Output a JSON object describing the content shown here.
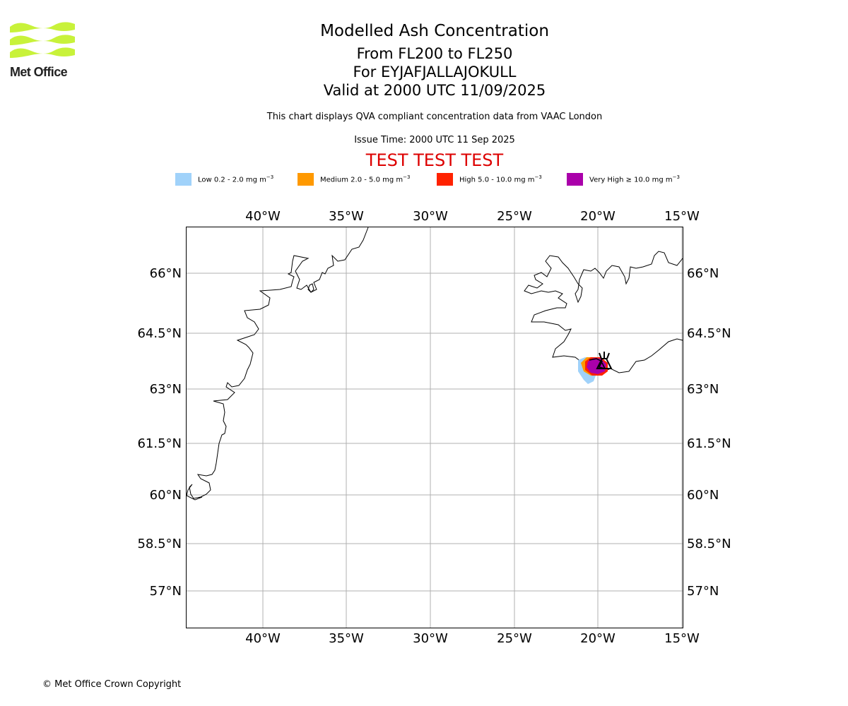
{
  "branding": {
    "logo_text": "Met Office",
    "logo_color": "#c8f23a"
  },
  "header": {
    "title": "Modelled Ash Concentration",
    "levels": "From FL200 to FL250",
    "volcano": "For EYJAFJALLAJOKULL",
    "valid": "Valid at 2000 UTC 11/09/2025",
    "description": "This chart displays QVA compliant concentration data from VAAC London",
    "issue_time": "Issue Time: 2000 UTC 11 Sep 2025",
    "test_banner": "TEST TEST TEST",
    "test_color": "#dd0000"
  },
  "legend": [
    {
      "label": "Low 0.2 - 2.0 mg m",
      "exp": "−3",
      "color": "#a0d2fa"
    },
    {
      "label": "Medium 2.0 - 5.0 mg m",
      "exp": "−3",
      "color": "#ff9900"
    },
    {
      "label": "High 5.0 - 10.0 mg m",
      "exp": "−3",
      "color": "#ff2200"
    },
    {
      "label": "Very High  ≥  10.0 mg m",
      "exp": "−3",
      "color": "#aa00aa"
    }
  ],
  "map": {
    "lon_ticks": [
      "40°W",
      "35°W",
      "30°W",
      "25°W",
      "20°W",
      "15°W"
    ],
    "lat_ticks": [
      "66°N",
      "64.5°N",
      "63°N",
      "61.5°N",
      "60°N",
      "58.5°N",
      "57°N"
    ],
    "lon_range": [
      -44.6,
      -14.9
    ],
    "lat_range": [
      55.9,
      67.2
    ],
    "volcano_lon": -19.6,
    "volcano_lat": 63.63
  },
  "footer": {
    "copyright": "© Met Office Crown Copyright"
  }
}
